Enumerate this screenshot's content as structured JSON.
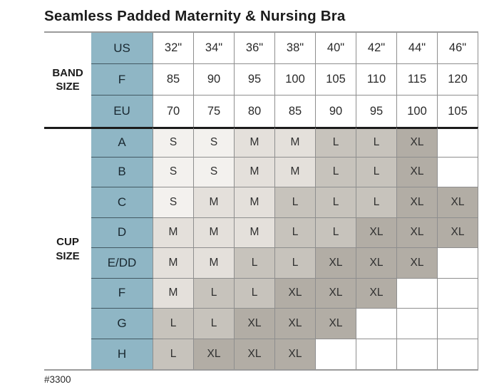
{
  "chart_data": {
    "type": "table",
    "title": "Seamless Padded Maternity & Nursing Bra",
    "footer_code": "#3300",
    "band_section": {
      "label_line1": "BAND",
      "label_line2": "SIZE",
      "rows": [
        {
          "label": "US",
          "cells": [
            "32\"",
            "34\"",
            "36\"",
            "38\"",
            "40\"",
            "42\"",
            "44\"",
            "46\""
          ]
        },
        {
          "label": "F",
          "cells": [
            "85",
            "90",
            "95",
            "100",
            "105",
            "110",
            "115",
            "120"
          ]
        },
        {
          "label": "EU",
          "cells": [
            "70",
            "75",
            "80",
            "85",
            "90",
            "95",
            "100",
            "105"
          ]
        }
      ]
    },
    "cup_section": {
      "label_line1": "CUP",
      "label_line2": "SIZE",
      "rows": [
        {
          "label": "A",
          "cells": [
            "S",
            "S",
            "M",
            "M",
            "L",
            "L",
            "XL",
            ""
          ]
        },
        {
          "label": "B",
          "cells": [
            "S",
            "S",
            "M",
            "M",
            "L",
            "L",
            "XL",
            ""
          ]
        },
        {
          "label": "C",
          "cells": [
            "S",
            "M",
            "M",
            "L",
            "L",
            "L",
            "XL",
            "XL"
          ]
        },
        {
          "label": "D",
          "cells": [
            "M",
            "M",
            "M",
            "L",
            "L",
            "XL",
            "XL",
            "XL"
          ]
        },
        {
          "label": "E/DD",
          "cells": [
            "M",
            "M",
            "L",
            "L",
            "XL",
            "XL",
            "XL",
            ""
          ]
        },
        {
          "label": "F",
          "cells": [
            "M",
            "L",
            "L",
            "XL",
            "XL",
            "XL",
            "",
            ""
          ]
        },
        {
          "label": "G",
          "cells": [
            "L",
            "L",
            "XL",
            "XL",
            "XL",
            "",
            "",
            ""
          ]
        },
        {
          "label": "H",
          "cells": [
            "L",
            "XL",
            "XL",
            "XL",
            "",
            "",
            "",
            ""
          ]
        }
      ]
    },
    "colors": {
      "teal_header": "#8fb6c5",
      "size_s": "#f3f1ee",
      "size_m": "#e4e0db",
      "size_l": "#c7c3bc",
      "size_xl": "#b2ada5",
      "empty_cell": "#ffffff"
    }
  }
}
